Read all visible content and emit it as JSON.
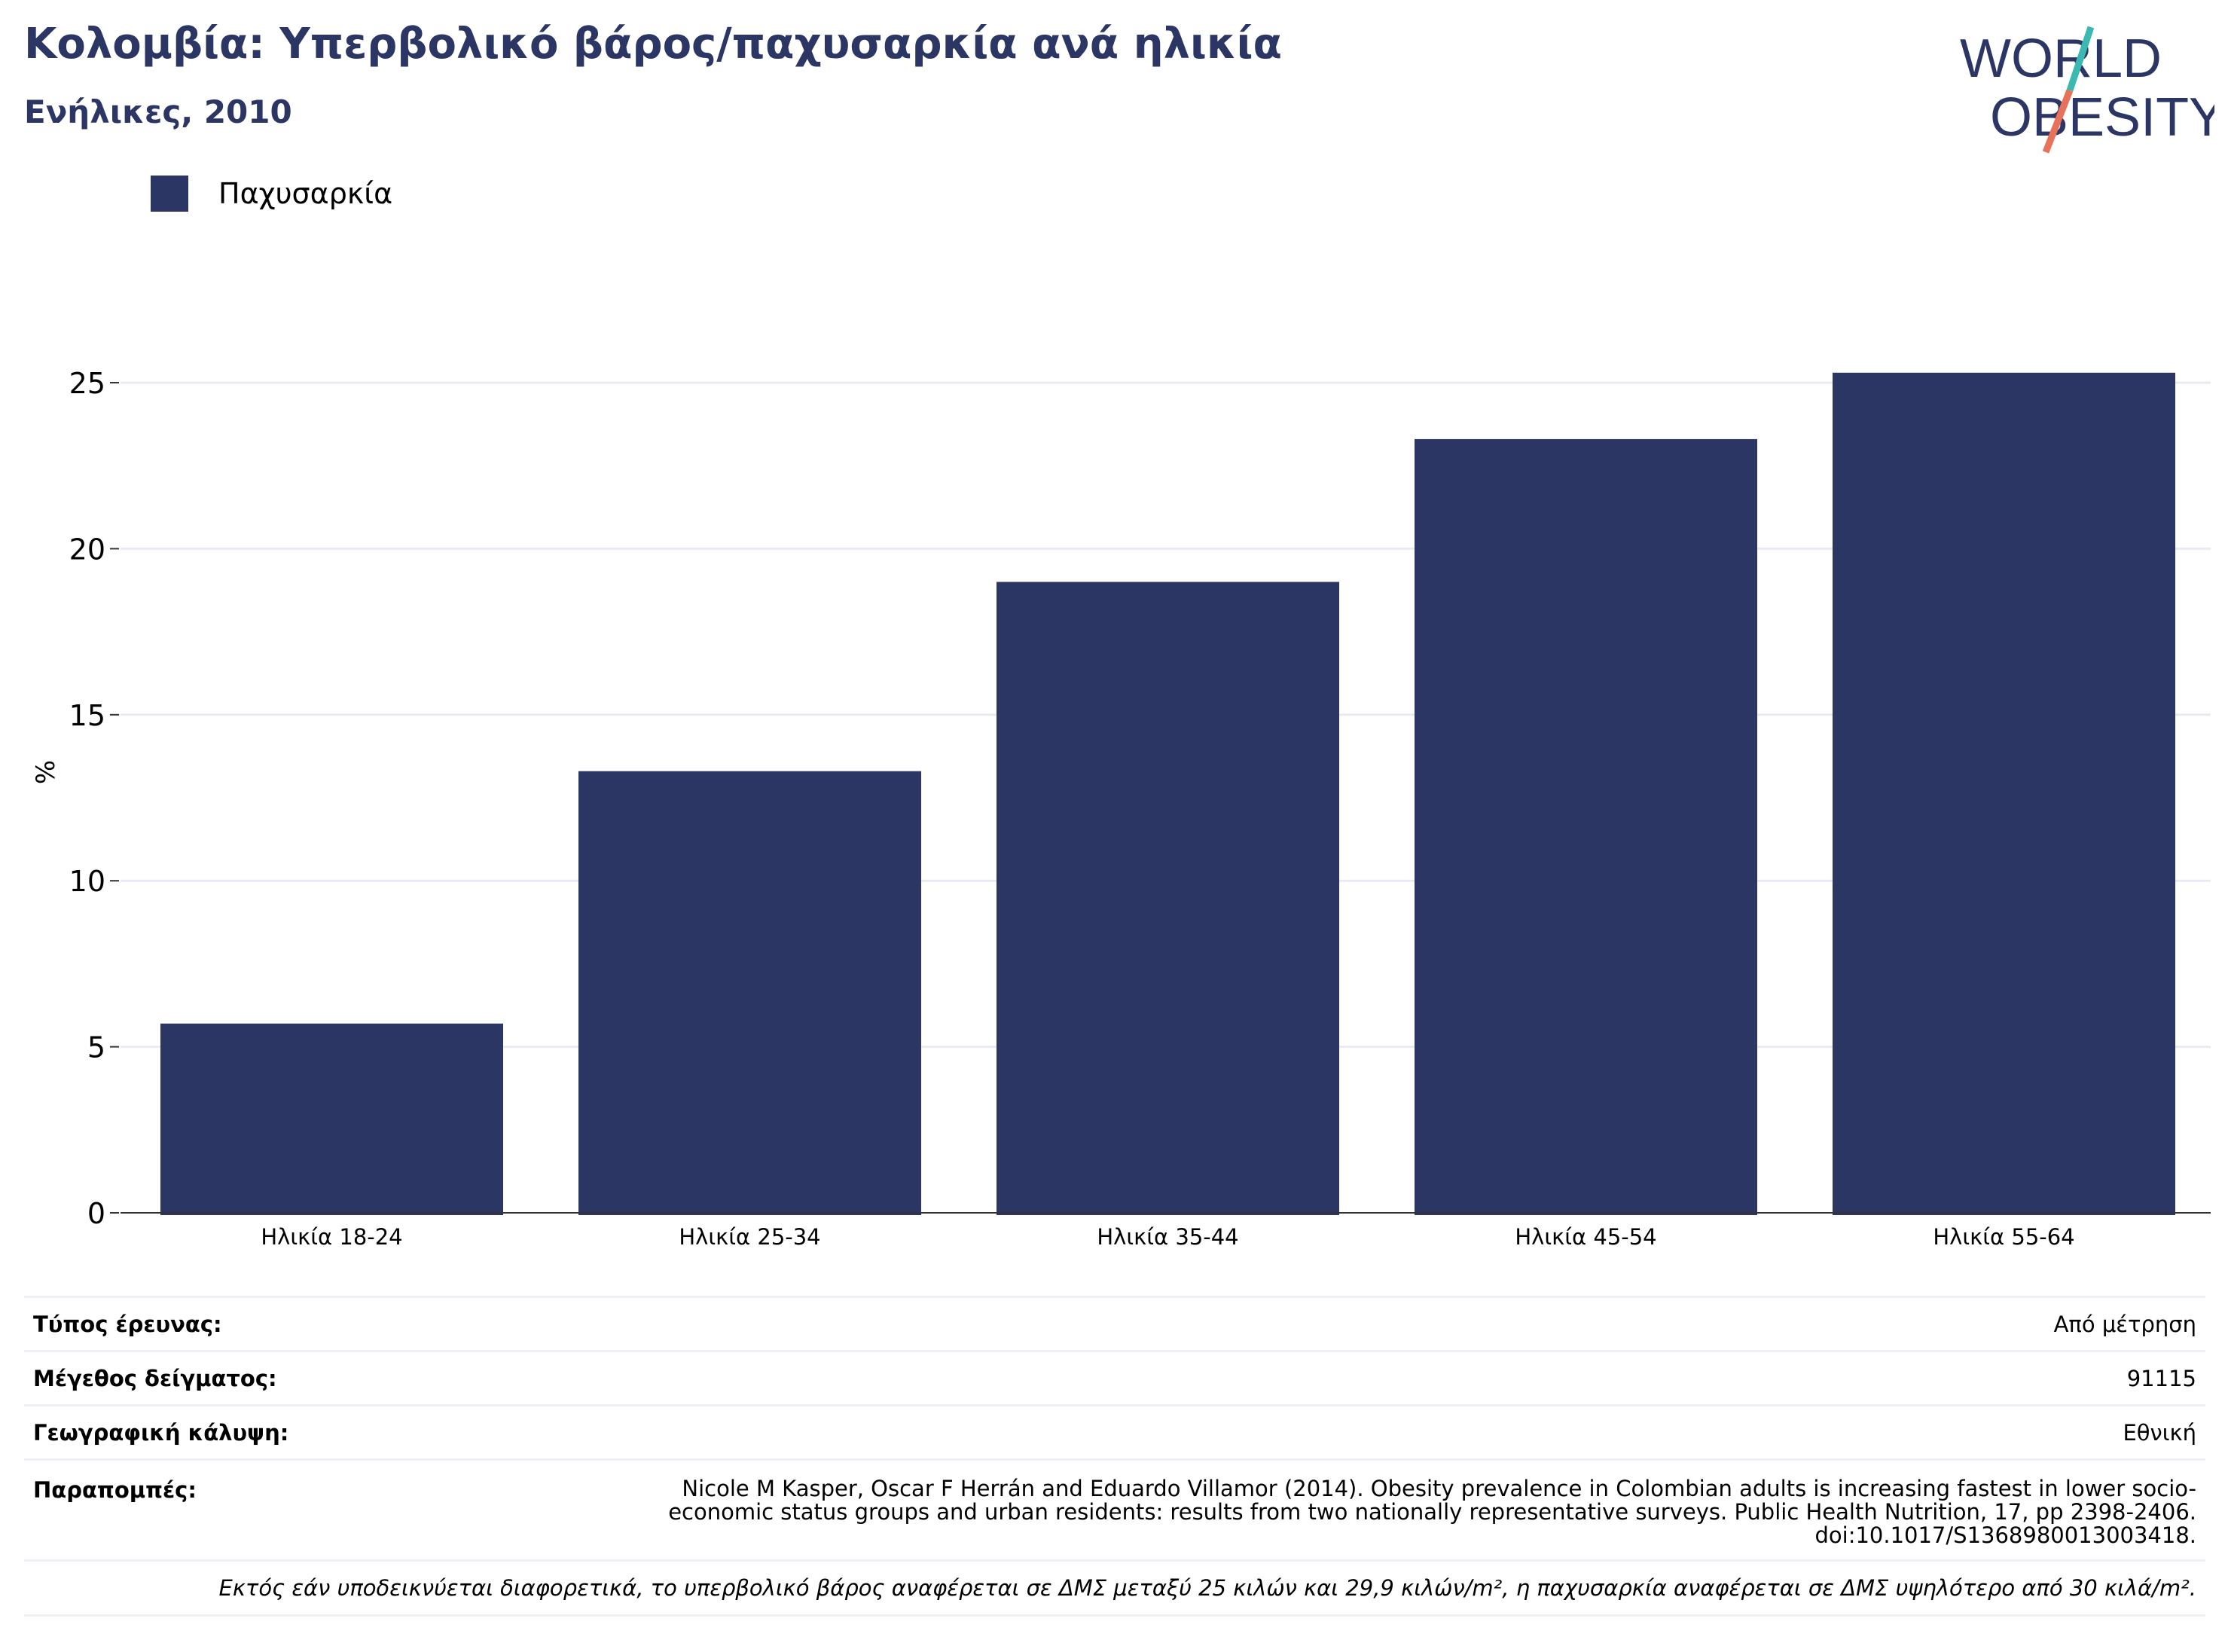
{
  "header": {
    "title": "Κολομβία: Υπερβολικό βάρος/παχυσαρκία ανά ηλικία",
    "subtitle": "Ενήλικες, 2010"
  },
  "logo": {
    "line1": "WORLD",
    "line2": "OBESITY",
    "colors": {
      "text": "#2b3664",
      "slash_top": "#3cb8b2",
      "slash_bottom": "#e8715a"
    }
  },
  "legend": {
    "items": [
      {
        "label": "Παχυσαρκία",
        "color": "#2b3664"
      }
    ]
  },
  "chart_data": {
    "type": "bar",
    "categories": [
      "Ηλικία 18-24",
      "Ηλικία 25-34",
      "Ηλικία 35-44",
      "Ηλικία 45-54",
      "Ηλικία 55-64"
    ],
    "series": [
      {
        "name": "Παχυσαρκία",
        "color": "#2b3664",
        "values": [
          5.7,
          13.3,
          19.0,
          23.3,
          25.3
        ]
      }
    ],
    "ylabel": "%",
    "xlabel": "",
    "ylim": [
      0,
      26.5
    ],
    "yticks": [
      0,
      5,
      10,
      15,
      20,
      25
    ],
    "grid": true,
    "legend_position": "top-left"
  },
  "info": {
    "survey_type": {
      "label": "Τύπος έρευνας:",
      "value": "Από μέτρηση"
    },
    "sample_size": {
      "label": "Μέγεθος δείγματος:",
      "value": "91115"
    },
    "coverage": {
      "label": "Γεωγραφική κάλυψη:",
      "value": "Εθνική"
    },
    "references": {
      "label": "Παραπομπές:",
      "value": "Nicole M Kasper, Oscar F Herrán and Eduardo Villamor (2014). Obesity prevalence in Colombian adults is increasing fastest in lower socio-economic status groups and urban residents: results from two nationally representative surveys. Public Health Nutrition, 17, pp 2398-2406. doi:10.1017/S1368980013003418."
    },
    "note": "Εκτός εάν υποδεικνύεται διαφορετικά, το υπερβολικό βάρος αναφέρεται σε ΔΜΣ μεταξύ 25 κιλών και 29,9 κιλών/m², η παχυσαρκία αναφέρεται σε ΔΜΣ υψηλότερο από 30 κιλά/m²."
  }
}
